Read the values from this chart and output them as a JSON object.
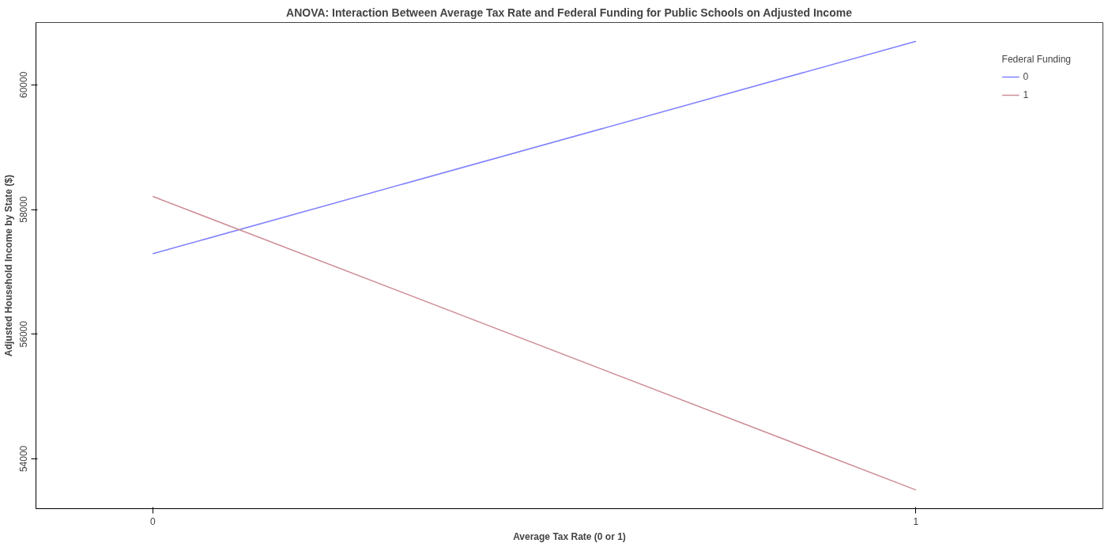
{
  "chart_data": {
    "type": "line",
    "title": "ANOVA: Interaction Between Average Tax Rate and Federal Funding for Public Schools on Adjusted Income",
    "xlabel": "Average Tax Rate (0 or 1)",
    "ylabel": "Adjusted Household Income by State ($)",
    "legend_title": "Federal Funding",
    "x": [
      0,
      1
    ],
    "series": [
      {
        "name": "0",
        "color": "#8080ff",
        "values": [
          57290,
          60700
        ]
      },
      {
        "name": "1",
        "color": "#cd8c95",
        "values": [
          58210,
          53500
        ]
      }
    ],
    "xlim": [
      -0.153,
      1.245
    ],
    "ylim": [
      53200,
      61000
    ],
    "xticks": [
      0,
      1
    ],
    "yticks": [
      54000,
      56000,
      58000,
      60000
    ],
    "grid": false,
    "legend": "top right",
    "marker": "none",
    "line_style": "solid"
  }
}
